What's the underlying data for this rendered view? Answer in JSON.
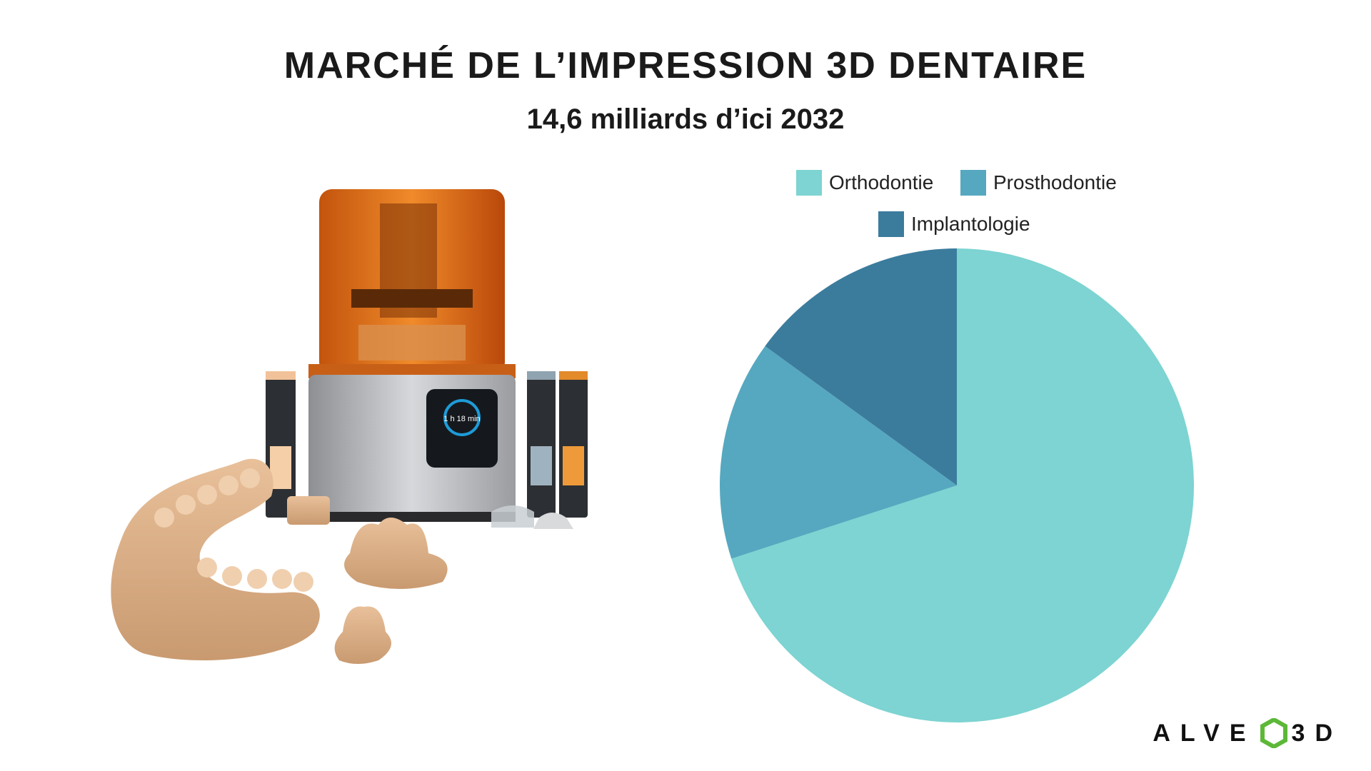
{
  "header": {
    "title": "MARCHÉ DE L’IMPRESSION 3D DENTAIRE",
    "subtitle": "14,6 milliards d’ici 2032"
  },
  "printer_screen": {
    "time": "1 h 18 min"
  },
  "logo": {
    "left": "ALVE",
    "right": "3D",
    "accent": "#5db838"
  },
  "chart_data": {
    "type": "pie",
    "legend_position": "top",
    "categories": [
      "Orthodontie",
      "Prosthodontie",
      "Implantologie"
    ],
    "values": [
      70,
      15,
      15
    ],
    "colors": [
      "#7dd4d2",
      "#55a8bf",
      "#3b7c9d"
    ]
  }
}
